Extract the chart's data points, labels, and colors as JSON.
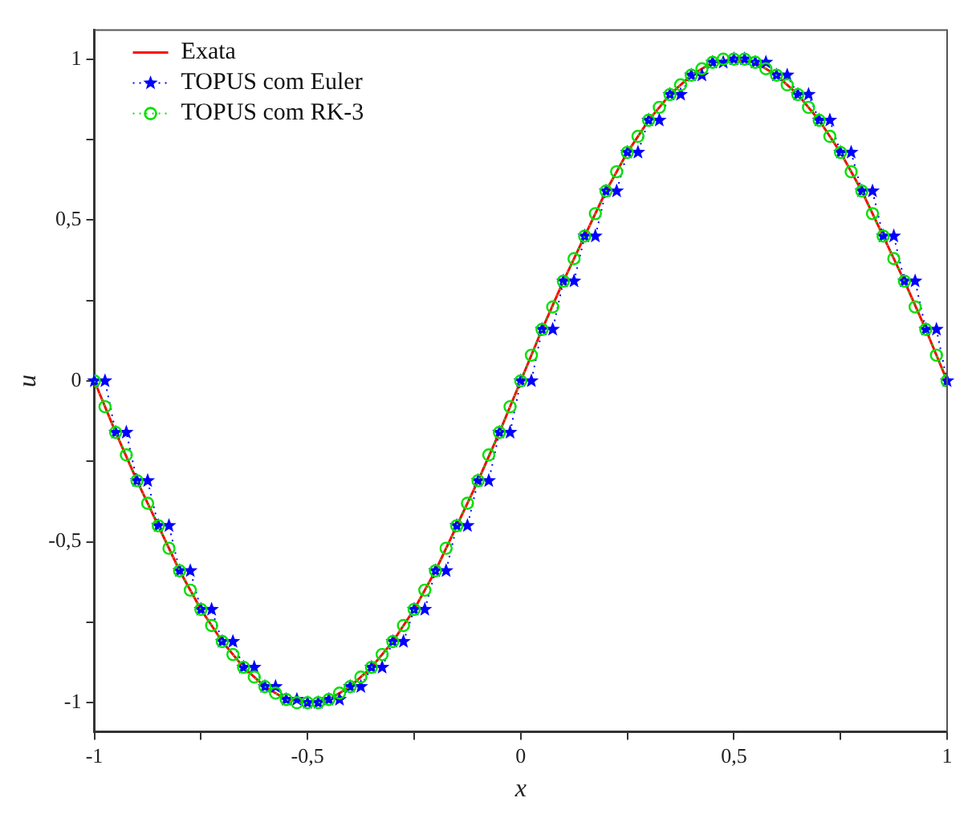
{
  "chart_data": {
    "type": "line",
    "xlabel": "x",
    "ylabel": "u",
    "legend": "top left",
    "grid": false,
    "xlim": [
      -1,
      1
    ],
    "ylim": [
      -1.09,
      1.09
    ],
    "xticks": [
      {
        "value": -1,
        "label": "-1"
      },
      {
        "value": -0.75,
        "label": null
      },
      {
        "value": -0.5,
        "label": "-0,5"
      },
      {
        "value": -0.25,
        "label": null
      },
      {
        "value": 0,
        "label": "0"
      },
      {
        "value": 0.25,
        "label": null
      },
      {
        "value": 0.5,
        "label": "0,5"
      },
      {
        "value": 0.75,
        "label": null
      },
      {
        "value": 1,
        "label": "1"
      }
    ],
    "yticks": [
      {
        "value": -1,
        "label": "-1"
      },
      {
        "value": -0.75,
        "label": null
      },
      {
        "value": -0.5,
        "label": "-0,5"
      },
      {
        "value": -0.25,
        "label": null
      },
      {
        "value": 0,
        "label": "0"
      },
      {
        "value": 0.25,
        "label": null
      },
      {
        "value": 0.5,
        "label": "0,5"
      },
      {
        "value": 0.75,
        "label": null
      },
      {
        "value": 1,
        "label": "1"
      }
    ],
    "series": [
      {
        "name": "Exata",
        "color": "#ff0000",
        "marker": "none",
        "line_style": "solid",
        "x": [
          -1,
          -0.95,
          -0.9,
          -0.85,
          -0.8,
          -0.75,
          -0.7,
          -0.65,
          -0.6,
          -0.55,
          -0.5,
          -0.45,
          -0.4,
          -0.35,
          -0.3,
          -0.25,
          -0.2,
          -0.15,
          -0.1,
          -0.05,
          0,
          0.05,
          0.1,
          0.15,
          0.2,
          0.25,
          0.3,
          0.35,
          0.4,
          0.45,
          0.5,
          0.55,
          0.6,
          0.65,
          0.7,
          0.75,
          0.8,
          0.85,
          0.9,
          0.95,
          1
        ],
        "values": [
          0,
          -0.16,
          -0.31,
          -0.45,
          -0.59,
          -0.71,
          -0.81,
          -0.89,
          -0.95,
          -0.99,
          -1,
          -0.99,
          -0.95,
          -0.89,
          -0.81,
          -0.71,
          -0.59,
          -0.45,
          -0.31,
          -0.16,
          0,
          0.16,
          0.31,
          0.45,
          0.59,
          0.71,
          0.81,
          0.89,
          0.95,
          0.99,
          1,
          0.99,
          0.95,
          0.89,
          0.81,
          0.71,
          0.59,
          0.45,
          0.31,
          0.16,
          0
        ]
      },
      {
        "name": "TOPUS com Euler",
        "color": "#0000ff",
        "marker": "star",
        "line_style": "dotted",
        "x": [
          -1,
          -0.975,
          -0.95,
          -0.925,
          -0.9,
          -0.875,
          -0.85,
          -0.825,
          -0.8,
          -0.775,
          -0.75,
          -0.725,
          -0.7,
          -0.675,
          -0.65,
          -0.625,
          -0.6,
          -0.575,
          -0.55,
          -0.525,
          -0.5,
          -0.475,
          -0.45,
          -0.425,
          -0.4,
          -0.375,
          -0.35,
          -0.325,
          -0.3,
          -0.275,
          -0.25,
          -0.225,
          -0.2,
          -0.175,
          -0.15,
          -0.125,
          -0.1,
          -0.075,
          -0.05,
          -0.025,
          0,
          0.025,
          0.05,
          0.075,
          0.1,
          0.125,
          0.15,
          0.175,
          0.2,
          0.225,
          0.25,
          0.275,
          0.3,
          0.325,
          0.35,
          0.375,
          0.4,
          0.425,
          0.45,
          0.475,
          0.5,
          0.525,
          0.55,
          0.575,
          0.6,
          0.625,
          0.65,
          0.675,
          0.7,
          0.725,
          0.75,
          0.775,
          0.8,
          0.825,
          0.85,
          0.875,
          0.9,
          0.925,
          0.95,
          0.975,
          1
        ],
        "values": [
          0,
          0,
          -0.16,
          -0.16,
          -0.31,
          -0.31,
          -0.45,
          -0.45,
          -0.59,
          -0.59,
          -0.71,
          -0.71,
          -0.81,
          -0.81,
          -0.89,
          -0.89,
          -0.95,
          -0.95,
          -0.99,
          -0.99,
          -1,
          -1,
          -0.99,
          -0.99,
          -0.95,
          -0.95,
          -0.89,
          -0.89,
          -0.81,
          -0.81,
          -0.71,
          -0.71,
          -0.59,
          -0.59,
          -0.45,
          -0.45,
          -0.31,
          -0.31,
          -0.16,
          -0.16,
          0,
          0,
          0.16,
          0.16,
          0.31,
          0.31,
          0.45,
          0.45,
          0.59,
          0.59,
          0.71,
          0.71,
          0.81,
          0.81,
          0.89,
          0.89,
          0.95,
          0.95,
          0.99,
          0.99,
          1,
          1,
          0.99,
          0.99,
          0.95,
          0.95,
          0.89,
          0.89,
          0.81,
          0.81,
          0.71,
          0.71,
          0.59,
          0.59,
          0.45,
          0.45,
          0.31,
          0.31,
          0.16,
          0.16,
          0
        ]
      },
      {
        "name": "TOPUS com RK-3",
        "color": "#00e000",
        "marker": "circle",
        "line_style": "dotted",
        "x": [
          -1,
          -0.975,
          -0.95,
          -0.925,
          -0.9,
          -0.875,
          -0.85,
          -0.825,
          -0.8,
          -0.775,
          -0.75,
          -0.725,
          -0.7,
          -0.675,
          -0.65,
          -0.625,
          -0.6,
          -0.575,
          -0.55,
          -0.525,
          -0.5,
          -0.475,
          -0.45,
          -0.425,
          -0.4,
          -0.375,
          -0.35,
          -0.325,
          -0.3,
          -0.275,
          -0.25,
          -0.225,
          -0.2,
          -0.175,
          -0.15,
          -0.125,
          -0.1,
          -0.075,
          -0.05,
          -0.025,
          0,
          0.025,
          0.05,
          0.075,
          0.1,
          0.125,
          0.15,
          0.175,
          0.2,
          0.225,
          0.25,
          0.275,
          0.3,
          0.325,
          0.35,
          0.375,
          0.4,
          0.425,
          0.45,
          0.475,
          0.5,
          0.525,
          0.55,
          0.575,
          0.6,
          0.625,
          0.65,
          0.675,
          0.7,
          0.725,
          0.75,
          0.775,
          0.8,
          0.825,
          0.85,
          0.875,
          0.9,
          0.925,
          0.95,
          0.975,
          1
        ],
        "values": [
          0,
          -0.08,
          -0.16,
          -0.23,
          -0.31,
          -0.38,
          -0.45,
          -0.52,
          -0.59,
          -0.65,
          -0.71,
          -0.76,
          -0.81,
          -0.85,
          -0.89,
          -0.92,
          -0.95,
          -0.97,
          -0.99,
          -1,
          -1,
          -1,
          -0.99,
          -0.97,
          -0.95,
          -0.92,
          -0.89,
          -0.85,
          -0.81,
          -0.76,
          -0.71,
          -0.65,
          -0.59,
          -0.52,
          -0.45,
          -0.38,
          -0.31,
          -0.23,
          -0.16,
          -0.08,
          0,
          0.08,
          0.16,
          0.23,
          0.31,
          0.38,
          0.45,
          0.52,
          0.59,
          0.65,
          0.71,
          0.76,
          0.81,
          0.85,
          0.89,
          0.92,
          0.95,
          0.97,
          0.99,
          1,
          1,
          1,
          0.99,
          0.97,
          0.95,
          0.92,
          0.89,
          0.85,
          0.81,
          0.76,
          0.71,
          0.65,
          0.59,
          0.52,
          0.45,
          0.38,
          0.31,
          0.23,
          0.16,
          0.08,
          0
        ]
      }
    ]
  }
}
